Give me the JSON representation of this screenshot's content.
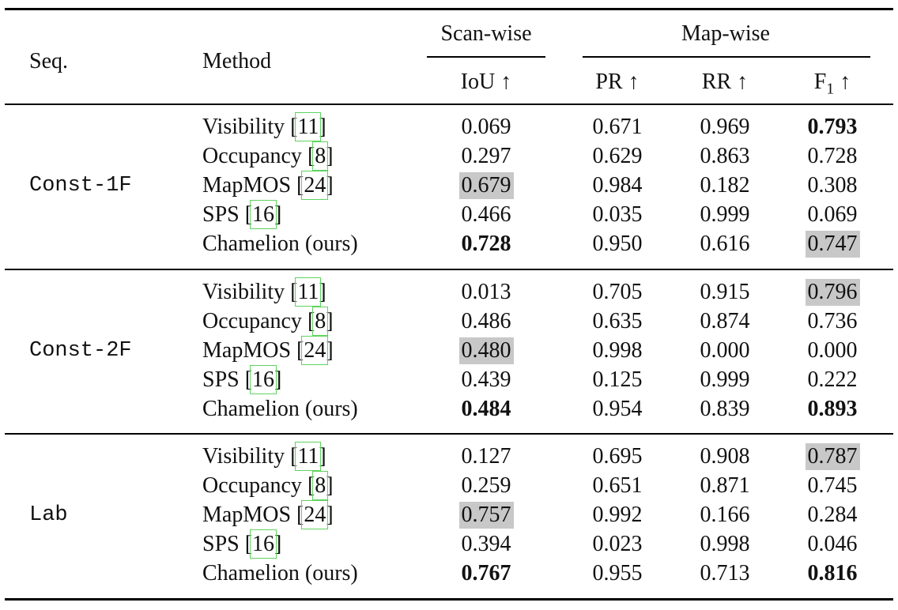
{
  "header": {
    "seq": "Seq.",
    "method": "Method",
    "scanwise": "Scan-wise",
    "mapwise": "Map-wise",
    "iou": "IoU ↑",
    "pr": "PR ↑",
    "rr": "RR ↑",
    "f1_base": "F",
    "f1_sub": "1",
    "f1_arrow": "↑"
  },
  "groups": [
    {
      "seq": "Const-1F",
      "rows": [
        {
          "method": "Visibility",
          "ref": "11",
          "iou": "0.069",
          "pr": "0.671",
          "rr": "0.969",
          "f1": "0.793"
        },
        {
          "method": "Occupancy",
          "ref": "8",
          "iou": "0.297",
          "pr": "0.629",
          "rr": "0.863",
          "f1": "0.728"
        },
        {
          "method": "MapMOS",
          "ref": "24",
          "iou": "0.679",
          "pr": "0.984",
          "rr": "0.182",
          "f1": "0.308"
        },
        {
          "method": "SPS",
          "ref": "16",
          "iou": "0.466",
          "pr": "0.035",
          "rr": "0.999",
          "f1": "0.069"
        },
        {
          "method": "Chamelion (ours)",
          "ref": "",
          "iou": "0.728",
          "pr": "0.950",
          "rr": "0.616",
          "f1": "0.747"
        }
      ]
    },
    {
      "seq": "Const-2F",
      "rows": [
        {
          "method": "Visibility",
          "ref": "11",
          "iou": "0.013",
          "pr": "0.705",
          "rr": "0.915",
          "f1": "0.796"
        },
        {
          "method": "Occupancy",
          "ref": "8",
          "iou": "0.486",
          "pr": "0.635",
          "rr": "0.874",
          "f1": "0.736"
        },
        {
          "method": "MapMOS",
          "ref": "24",
          "iou": "0.480",
          "pr": "0.998",
          "rr": "0.000",
          "f1": "0.000"
        },
        {
          "method": "SPS",
          "ref": "16",
          "iou": "0.439",
          "pr": "0.125",
          "rr": "0.999",
          "f1": "0.222"
        },
        {
          "method": "Chamelion (ours)",
          "ref": "",
          "iou": "0.484",
          "pr": "0.954",
          "rr": "0.839",
          "f1": "0.893"
        }
      ]
    },
    {
      "seq": "Lab",
      "rows": [
        {
          "method": "Visibility",
          "ref": "11",
          "iou": "0.127",
          "pr": "0.695",
          "rr": "0.908",
          "f1": "0.787"
        },
        {
          "method": "Occupancy",
          "ref": "8",
          "iou": "0.259",
          "pr": "0.651",
          "rr": "0.871",
          "f1": "0.745"
        },
        {
          "method": "MapMOS",
          "ref": "24",
          "iou": "0.757",
          "pr": "0.992",
          "rr": "0.166",
          "f1": "0.284"
        },
        {
          "method": "SPS",
          "ref": "16",
          "iou": "0.394",
          "pr": "0.023",
          "rr": "0.998",
          "f1": "0.046"
        },
        {
          "method": "Chamelion (ours)",
          "ref": "",
          "iou": "0.767",
          "pr": "0.955",
          "rr": "0.713",
          "f1": "0.816"
        }
      ]
    }
  ],
  "highlight_color": "#c8c8c8",
  "styling": {
    "bold": [
      [
        0,
        0,
        "f1"
      ],
      [
        0,
        4,
        "iou"
      ],
      [
        1,
        4,
        "iou"
      ],
      [
        1,
        4,
        "f1"
      ],
      [
        2,
        4,
        "iou"
      ],
      [
        2,
        4,
        "f1"
      ]
    ],
    "shaded": [
      [
        0,
        2,
        "iou"
      ],
      [
        0,
        4,
        "f1"
      ],
      [
        1,
        0,
        "f1"
      ],
      [
        1,
        2,
        "iou"
      ],
      [
        2,
        0,
        "f1"
      ],
      [
        2,
        2,
        "iou"
      ]
    ]
  }
}
